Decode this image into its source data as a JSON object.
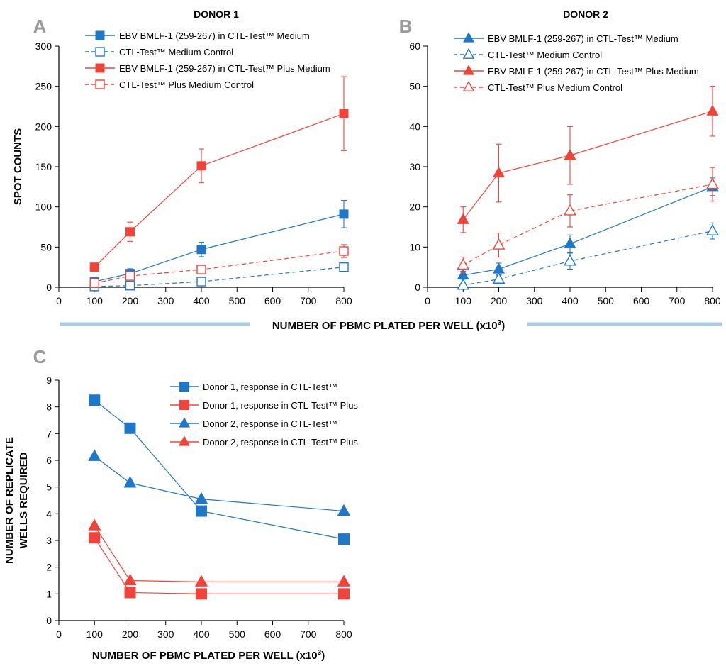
{
  "colors": {
    "blue": "#1f77c8",
    "red": "#f2433a",
    "divider": "#a9cbe6",
    "panel_letter": "#9a9a9a"
  },
  "shared_xlabel_prefix": "NUMBER OF PBMC PLATED PER WELL (x10",
  "shared_xlabel_sup": "3",
  "shared_xlabel_suffix": ")",
  "chart_data": [
    {
      "panel_letter": "A",
      "type": "line",
      "title": "DONOR 1",
      "xlabel": "",
      "ylabel": "SPOT COUNTS",
      "xlim": [
        0,
        800
      ],
      "ylim": [
        0,
        300
      ],
      "xticks": [
        0,
        100,
        200,
        300,
        400,
        500,
        600,
        700,
        800
      ],
      "yticks": [
        0,
        50,
        100,
        150,
        200,
        250,
        300
      ],
      "grid": false,
      "legend_position": "top-left",
      "series": [
        {
          "name": "EBV BMLF-1 (259-267) in CTL-Test™ Medium",
          "color": "blue",
          "marker": "square",
          "filled": true,
          "dashed": false,
          "x": [
            100,
            200,
            400,
            800
          ],
          "y": [
            7,
            17,
            47,
            91
          ],
          "err": [
            3,
            6,
            9,
            17
          ]
        },
        {
          "name": "CTL-Test™ Medium Control",
          "color": "blue",
          "marker": "square",
          "filled": false,
          "dashed": true,
          "x": [
            100,
            200,
            400,
            800
          ],
          "y": [
            1,
            2,
            7,
            25
          ],
          "err": [
            1,
            2,
            3,
            4
          ]
        },
        {
          "name": "EBV BMLF-1 (259-267) in CTL-Test™ Plus Medium",
          "color": "red",
          "marker": "square",
          "filled": true,
          "dashed": false,
          "x": [
            100,
            200,
            400,
            800
          ],
          "y": [
            25,
            69,
            151,
            216
          ],
          "err": [
            2,
            12,
            21,
            46
          ]
        },
        {
          "name": "CTL-Test™ Plus Medium Control",
          "color": "red",
          "marker": "square",
          "filled": false,
          "dashed": true,
          "x": [
            100,
            200,
            400,
            800
          ],
          "y": [
            5,
            14,
            22,
            45
          ],
          "err": [
            2,
            3,
            4,
            8
          ]
        }
      ]
    },
    {
      "panel_letter": "B",
      "type": "line",
      "title": "DONOR 2",
      "xlabel": "",
      "ylabel": "",
      "xlim": [
        0,
        800
      ],
      "ylim": [
        0,
        60
      ],
      "xticks": [
        0,
        100,
        200,
        300,
        400,
        500,
        600,
        700,
        800
      ],
      "yticks": [
        0,
        10,
        20,
        30,
        40,
        50,
        60
      ],
      "grid": false,
      "legend_position": "top-left",
      "series": [
        {
          "name": "EBV BMLF-1 (259-267)  in CTL-Test™ Medium",
          "color": "blue",
          "marker": "triangle",
          "filled": true,
          "dashed": false,
          "x": [
            100,
            200,
            400,
            800
          ],
          "y": [
            3,
            4.5,
            10.8,
            25
          ],
          "err": [
            1,
            1.5,
            2.2,
            2.2
          ]
        },
        {
          "name": "CTL-Test™ Medium Control",
          "color": "blue",
          "marker": "triangle",
          "filled": false,
          "dashed": true,
          "x": [
            100,
            200,
            400,
            800
          ],
          "y": [
            0.5,
            2,
            6.5,
            14
          ],
          "err": [
            0.8,
            1.2,
            2,
            2
          ]
        },
        {
          "name": "EBV BMLF-1 (259-267) in CTL-Test™ Plus Medium",
          "color": "red",
          "marker": "triangle",
          "filled": true,
          "dashed": false,
          "x": [
            100,
            200,
            400,
            800
          ],
          "y": [
            16.8,
            28.4,
            32.8,
            43.8
          ],
          "err": [
            3.2,
            7.2,
            7.2,
            6.2
          ]
        },
        {
          "name": "CTL-Test™ Plus Medium Control",
          "color": "red",
          "marker": "triangle",
          "filled": false,
          "dashed": true,
          "x": [
            100,
            200,
            400,
            800
          ],
          "y": [
            5.5,
            10.5,
            19,
            25.6
          ],
          "err": [
            2,
            3,
            4,
            4.2
          ]
        }
      ]
    },
    {
      "panel_letter": "C",
      "type": "line",
      "title": "",
      "xlabel_prefix": "NUMBER OF PBMC PLATED PER WELL (x10",
      "xlabel_sup": "3",
      "xlabel_suffix": ")",
      "ylabel": [
        "NUMBER OF REPLICATE",
        "WELLS REQUIRED"
      ],
      "xlim": [
        0,
        800
      ],
      "ylim": [
        0,
        9
      ],
      "xticks": [
        0,
        100,
        200,
        300,
        400,
        500,
        600,
        700,
        800
      ],
      "yticks": [
        0,
        1,
        2,
        3,
        4,
        5,
        6,
        7,
        8,
        9
      ],
      "grid": false,
      "legend_position": "top-right",
      "series": [
        {
          "name": "Donor 1, response in CTL-Test™",
          "color": "blue",
          "marker": "square",
          "filled": true,
          "dashed": false,
          "x": [
            100,
            200,
            400,
            800
          ],
          "y": [
            8.25,
            7.2,
            4.1,
            3.05
          ]
        },
        {
          "name": "Donor 1, response in CTL-Test™ Plus",
          "color": "red",
          "marker": "square",
          "filled": true,
          "dashed": false,
          "x": [
            100,
            200,
            400,
            800
          ],
          "y": [
            3.1,
            1.05,
            1,
            1
          ]
        },
        {
          "name": "Donor 2, response in CTL-Test™",
          "color": "blue",
          "marker": "triangle",
          "filled": true,
          "dashed": false,
          "x": [
            100,
            200,
            400,
            800
          ],
          "y": [
            6.15,
            5.15,
            4.55,
            4.1
          ]
        },
        {
          "name": "Donor 2, response in CTL-Test™ Plus",
          "color": "red",
          "marker": "triangle",
          "filled": true,
          "dashed": false,
          "x": [
            100,
            200,
            400,
            800
          ],
          "y": [
            3.55,
            1.5,
            1.45,
            1.45
          ]
        }
      ]
    }
  ]
}
